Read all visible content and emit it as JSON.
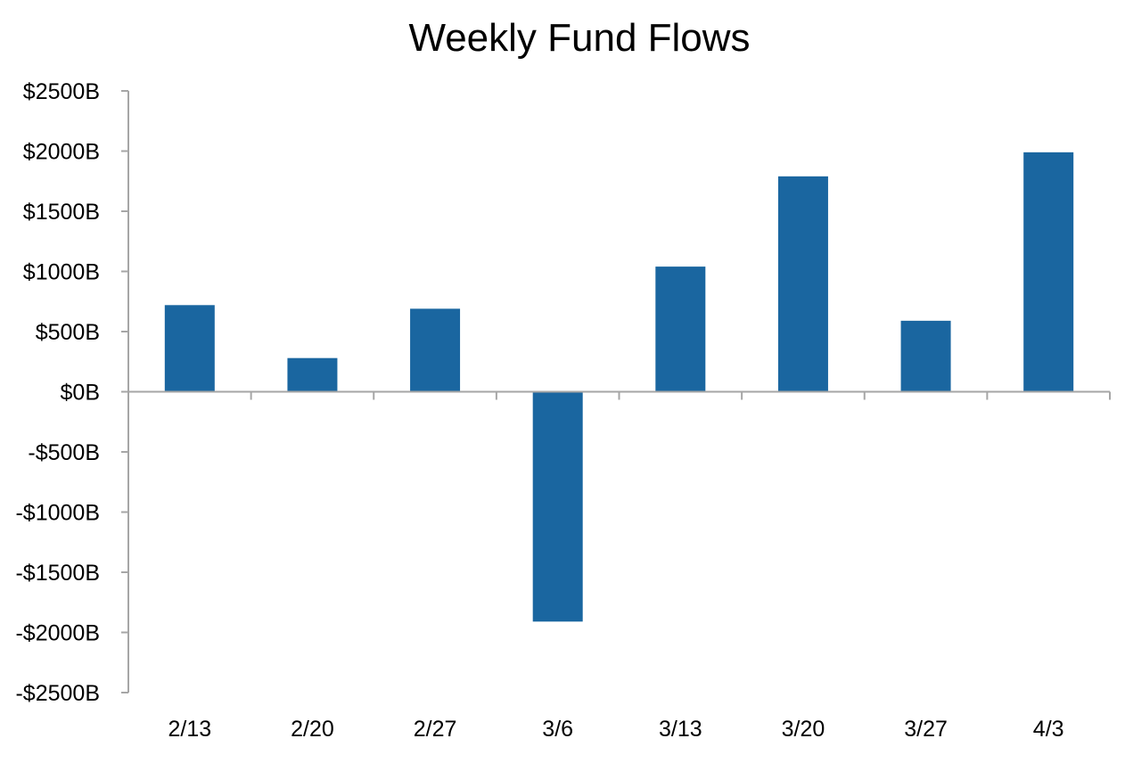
{
  "chart_data": {
    "type": "bar",
    "title": "Weekly Fund Flows",
    "xlabel": "",
    "ylabel": "",
    "categories": [
      "2/13",
      "2/20",
      "2/27",
      "3/6",
      "3/13",
      "3/20",
      "3/27",
      "4/3"
    ],
    "values": [
      720,
      280,
      690,
      -1910,
      1040,
      1790,
      590,
      1990
    ],
    "ylim": [
      -2500,
      2500
    ],
    "yticks": [
      2500,
      2000,
      1500,
      1000,
      500,
      0,
      -500,
      -1000,
      -1500,
      -2000,
      -2500
    ],
    "ytick_labels": [
      "$2500B",
      "$2000B",
      "$1500B",
      "$1000B",
      "$500B",
      "$0B",
      "-$500B",
      "-$1000B",
      "-$1500B",
      "-$2000B",
      "-$2500B"
    ],
    "grid": false,
    "bar_color": "#1a66a0",
    "axis_color": "#a6a6a6"
  }
}
